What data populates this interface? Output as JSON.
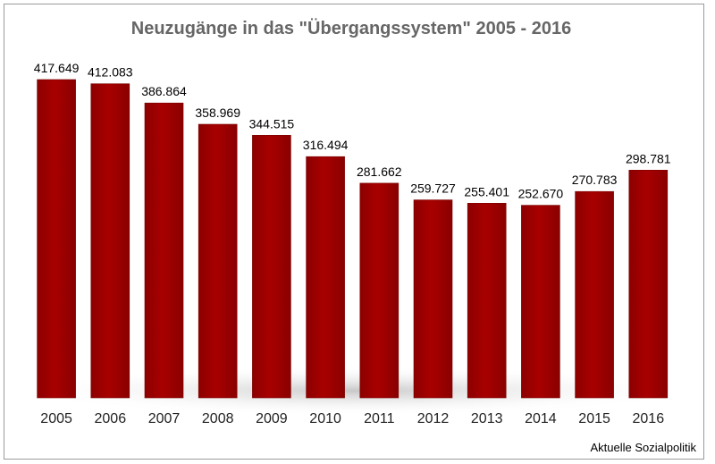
{
  "chart_data": {
    "type": "bar",
    "title": "Neuzugänge in das \"Übergangssystem\" 2005 - 2016",
    "xlabel": "",
    "ylabel": "",
    "categories": [
      "2005",
      "2006",
      "2007",
      "2008",
      "2009",
      "2010",
      "2011",
      "2012",
      "2013",
      "2014",
      "2015",
      "2016"
    ],
    "values": [
      417649,
      412083,
      386864,
      358969,
      344515,
      316494,
      281662,
      259727,
      255401,
      252670,
      270783,
      298781
    ],
    "data_labels": [
      "417.649",
      "412.083",
      "386.864",
      "358.969",
      "344.515",
      "316.494",
      "281.662",
      "259.727",
      "255.401",
      "252.670",
      "270.783",
      "298.781"
    ],
    "ylim": [
      0,
      417649
    ],
    "grid": false,
    "legend": "none",
    "colors": {
      "bar": "#a00000",
      "bar_edge": "#7a0000",
      "title": "#666666"
    }
  },
  "source": "Aktuelle Sozialpolitik"
}
